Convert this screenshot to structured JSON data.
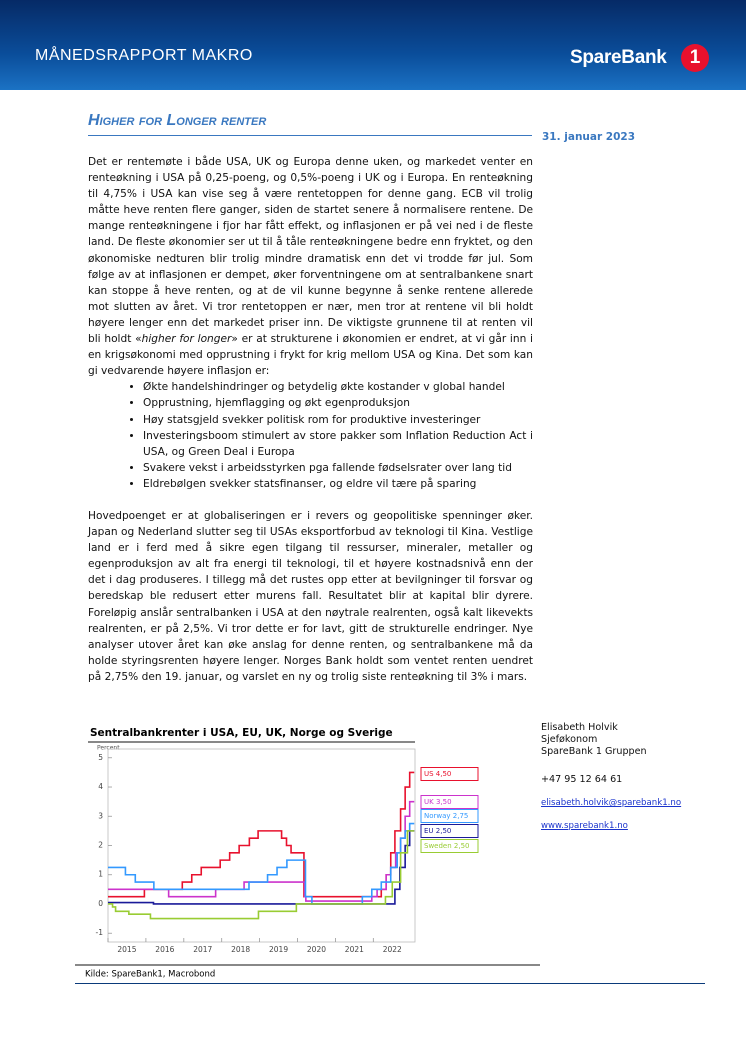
{
  "header": {
    "title": "MÅNEDSRAPPORT MAKRO",
    "logo_text": "SpareBank",
    "logo_number": "1"
  },
  "article": {
    "title": "Higher for Longer renter",
    "date": "31. januar 2023",
    "intro": {
      "before": "Det er rentemøte i både USA, UK og Europa denne uken, og markedet venter en renteøkning i USA på 0,25-poeng, og 0,5%-poeng i UK og i Europa. En renteøkning til 4,75% i USA kan vise seg å være rentetoppen for denne gang. ECB vil trolig måtte heve renten flere ganger, siden de startet senere å normalisere rentene. De mange renteøkningene i fjor har fått effekt, og inflasjonen er på vei ned i de fleste land. De fleste økonomier ser ut til å tåle renteøkningene bedre enn fryktet, og den økonomiske nedturen blir trolig mindre dramatisk enn det vi trodde før jul. Som følge av at inflasjonen er dempet, øker forventningene om at sentralbankene snart kan stoppe å heve renten, og at de vil kunne begynne å senke rentene allerede mot slutten av året. Vi tror rentetoppen er nær, men tror at rentene vil bli holdt høyere lenger enn det markedet priser inn. De viktigste grunnene til at renten vil bli holdt «",
      "emphasis": "higher for longer",
      "after": "» er at strukturene i økonomien er endret, at vi går inn i en krigsøkonomi med opprustning i frykt for krig mellom USA og Kina. Det som kan gi vedvarende høyere inflasjon er:"
    },
    "bullets": [
      "Økte handelshindringer og betydelig økte kostander v global handel",
      "Opprustning, hjemflagging og økt egenproduksjon",
      "Høy statsgjeld svekker politisk rom for produktive investeringer",
      "Investeringsboom stimulert av store pakker som Inflation Reduction Act i USA, og Green Deal i Europa",
      "Svakere vekst i arbeidsstyrken pga fallende fødselsrater over lang tid",
      "Eldrebølgen svekker statsfinanser, og eldre vil tære på sparing"
    ],
    "paragraph": "Hovedpoenget er at globaliseringen er i revers og geopolitiske spenninger øker. Japan og Nederland slutter seg til USAs eksportforbud av teknologi til Kina. Vestlige land er i ferd med å sikre egen tilgang til ressurser, mineraler, metaller og egenproduksjon av alt fra energi til teknologi, til et høyere kostnadsnivå enn der det i dag produseres. I tillegg må det rustes opp etter at bevilgninger til forsvar og beredskap ble redusert etter murens fall. Resultatet blir at kapital blir dyrere. Foreløpig anslår sentralbanken i USA at den nøytrale realrenten, også kalt likevekts realrenten, er på 2,5%. Vi tror dette er for lavt, gitt de strukturelle endringer. Nye analyser utover året kan øke anslag for denne renten, og sentralbankene må da holde styringsrenten høyere lenger. Norges Bank holdt som ventet renten uendret på 2,75% den 19. januar, og varslet en ny og trolig siste renteøkning til 3% i mars."
  },
  "chart_data": {
    "type": "line",
    "title": "Sentralbankrenter i USA, EU, UK, Norge og Sverige",
    "y_label": "Percent",
    "source": "Kilde: SpareBank1, Macrobond",
    "xlim": [
      2015,
      2023.1
    ],
    "xticks": [
      2015,
      2016,
      2017,
      2018,
      2019,
      2020,
      2021,
      2022
    ],
    "ylim": [
      -1.3,
      5.3
    ],
    "yticks": [
      -1,
      0,
      1,
      2,
      3,
      4,
      5
    ],
    "grid": false,
    "series": [
      {
        "name": "US 4,50",
        "color": "#e8112d",
        "x": [
          2015,
          2015.96,
          2015.96,
          2016.96,
          2016.96,
          2017.21,
          2017.21,
          2017.46,
          2017.46,
          2017.96,
          2017.96,
          2018.21,
          2018.21,
          2018.46,
          2018.46,
          2018.73,
          2018.73,
          2018.96,
          2018.96,
          2019.58,
          2019.58,
          2019.71,
          2019.71,
          2019.83,
          2019.83,
          2020.17,
          2020.17,
          2022.21,
          2022.21,
          2022.34,
          2022.34,
          2022.46,
          2022.46,
          2022.57,
          2022.57,
          2022.72,
          2022.72,
          2022.84,
          2022.84,
          2022.96,
          2022.96,
          2023.08
        ],
        "values": [
          0.25,
          0.25,
          0.5,
          0.5,
          0.75,
          0.75,
          1.0,
          1.0,
          1.25,
          1.25,
          1.5,
          1.5,
          1.75,
          1.75,
          2.0,
          2.0,
          2.25,
          2.25,
          2.5,
          2.5,
          2.25,
          2.25,
          2.0,
          2.0,
          1.75,
          1.75,
          0.25,
          0.25,
          0.5,
          0.5,
          1.0,
          1.0,
          1.75,
          1.75,
          2.5,
          2.5,
          3.25,
          3.25,
          4.0,
          4.0,
          4.5,
          4.5
        ]
      },
      {
        "name": "UK 3,50",
        "color": "#cc33cc",
        "x": [
          2015,
          2016.6,
          2016.6,
          2017.84,
          2017.84,
          2018.59,
          2018.59,
          2020.19,
          2020.19,
          2020.22,
          2020.22,
          2021.96,
          2021.96,
          2022.1,
          2022.1,
          2022.34,
          2022.34,
          2022.46,
          2022.46,
          2022.59,
          2022.59,
          2022.72,
          2022.72,
          2022.84,
          2022.84,
          2022.96,
          2022.96,
          2023.08
        ],
        "values": [
          0.5,
          0.5,
          0.25,
          0.25,
          0.5,
          0.5,
          0.75,
          0.75,
          0.25,
          0.25,
          0.1,
          0.1,
          0.25,
          0.25,
          0.5,
          0.5,
          1.0,
          1.0,
          1.25,
          1.25,
          1.75,
          1.75,
          2.25,
          2.25,
          3.0,
          3.0,
          3.5,
          3.5
        ]
      },
      {
        "name": "Norway 2,75",
        "color": "#3399ff",
        "x": [
          2015,
          2015.46,
          2015.46,
          2015.72,
          2015.72,
          2016.21,
          2016.21,
          2018.72,
          2018.72,
          2019.21,
          2019.21,
          2019.46,
          2019.46,
          2019.72,
          2019.72,
          2020.21,
          2020.21,
          2020.38,
          2020.38,
          2021.71,
          2021.71,
          2021.96,
          2021.96,
          2022.21,
          2022.21,
          2022.46,
          2022.46,
          2022.63,
          2022.63,
          2022.72,
          2022.72,
          2022.84,
          2022.84,
          2022.96,
          2022.96,
          2023.08
        ],
        "values": [
          1.25,
          1.25,
          1.0,
          1.0,
          0.75,
          0.75,
          0.5,
          0.5,
          0.75,
          0.75,
          1.0,
          1.0,
          1.25,
          1.25,
          1.5,
          1.5,
          0.25,
          0.25,
          0,
          0,
          0.25,
          0.25,
          0.5,
          0.5,
          0.75,
          0.75,
          1.25,
          1.25,
          1.75,
          1.75,
          2.25,
          2.25,
          2.5,
          2.5,
          2.75,
          2.75
        ]
      },
      {
        "name": "EU 2,50",
        "color": "#1a1a99",
        "x": [
          2015,
          2016.2,
          2016.2,
          2022.57,
          2022.57,
          2022.7,
          2022.7,
          2022.84,
          2022.84,
          2022.96,
          2022.96,
          2023.08
        ],
        "values": [
          0.05,
          0.05,
          0,
          0,
          0.5,
          0.5,
          1.25,
          1.25,
          2.0,
          2.0,
          2.5,
          2.5
        ]
      },
      {
        "name": "Sweden 2,50",
        "color": "#99cc33",
        "x": [
          2015,
          2015.12,
          2015.12,
          2015.2,
          2015.2,
          2015.55,
          2015.55,
          2016.12,
          2016.12,
          2018.97,
          2018.97,
          2019.97,
          2019.97,
          2022.32,
          2022.32,
          2022.5,
          2022.5,
          2022.72,
          2022.72,
          2022.9,
          2022.9,
          2023.08
        ],
        "values": [
          0,
          0,
          -0.1,
          -0.1,
          -0.25,
          -0.25,
          -0.35,
          -0.35,
          -0.5,
          -0.5,
          -0.25,
          -0.25,
          0,
          0,
          0.25,
          0.25,
          0.75,
          0.75,
          1.75,
          1.75,
          2.5,
          2.5
        ]
      }
    ]
  },
  "contact": {
    "name": "Elisabeth Holvik",
    "role": "Sjeføkonom",
    "organization": "SpareBank 1 Gruppen",
    "phone": "+47 95 12 64 61",
    "email": "elisabeth.holvik@sparebank1.no",
    "web": "www.sparebank1.no"
  }
}
